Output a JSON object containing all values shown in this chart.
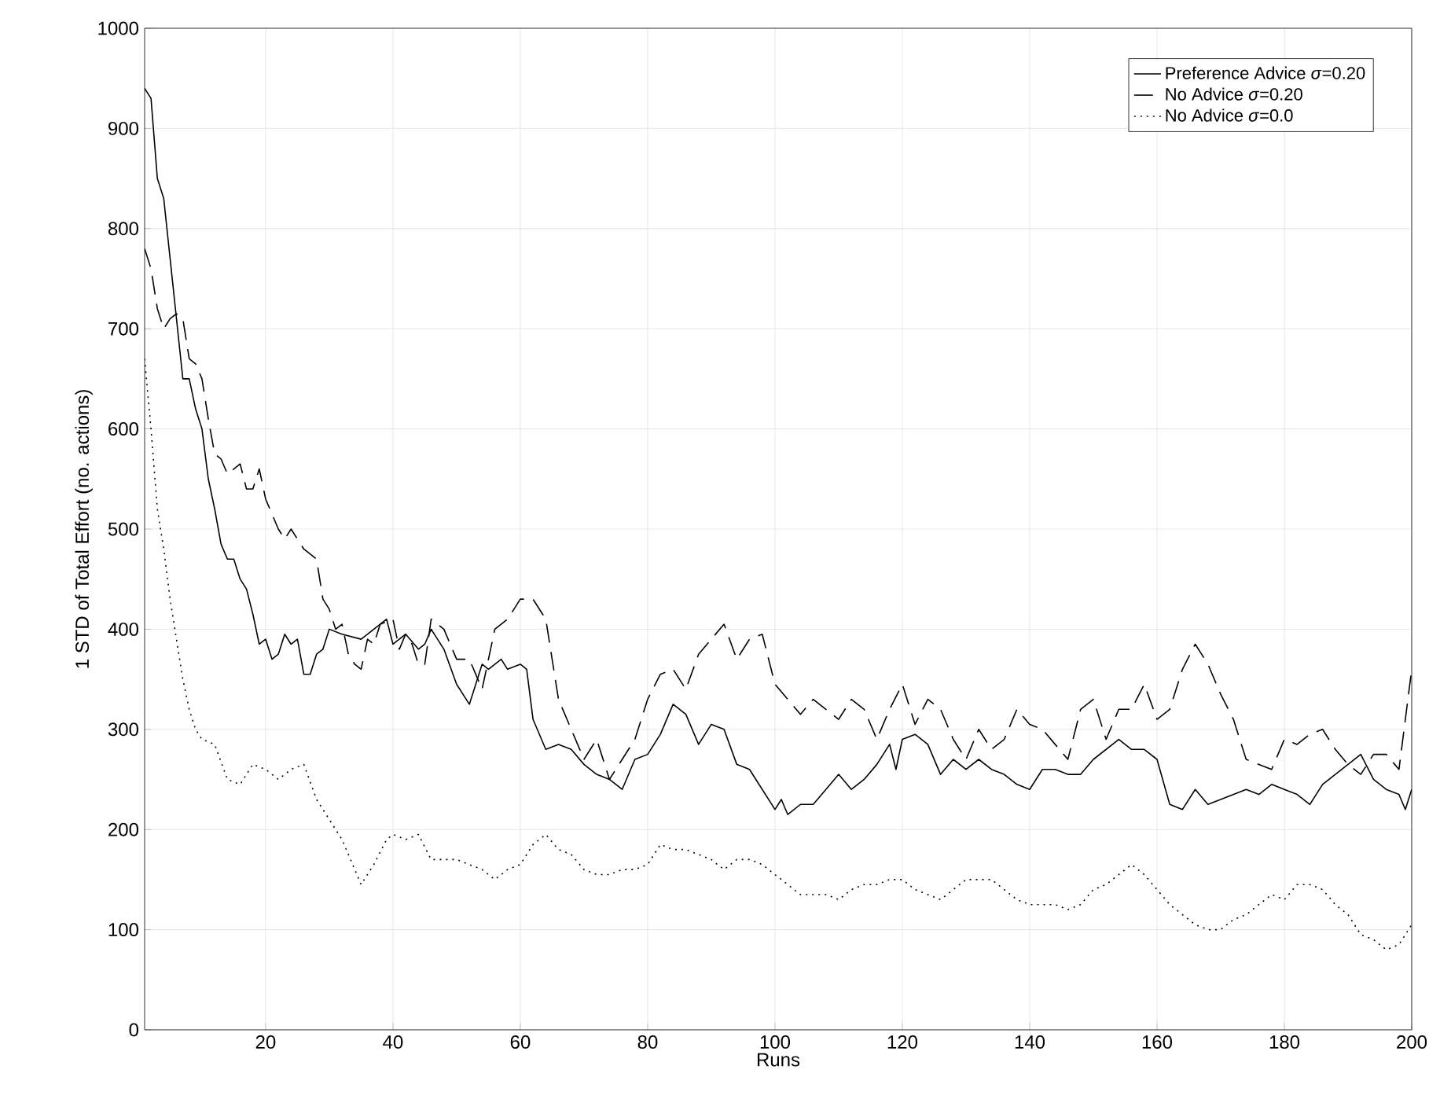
{
  "chart_data": {
    "type": "line",
    "xlabel": "Runs",
    "ylabel": "1 STD of Total Effort (no. actions)",
    "xlim": [
      1,
      200
    ],
    "ylim": [
      0,
      1000
    ],
    "xticks": [
      20,
      40,
      60,
      80,
      100,
      120,
      140,
      160,
      180,
      200
    ],
    "yticks": [
      0,
      100,
      200,
      300,
      400,
      500,
      600,
      700,
      800,
      900,
      1000
    ],
    "grid": true,
    "legend": "top right",
    "marker": "none",
    "series": [
      {
        "name": "Preference Advice *σ*=0.20",
        "color": "#000000",
        "line_style": "solid",
        "x": [
          1,
          2,
          3,
          4,
          5,
          6,
          7,
          8,
          9,
          10,
          11,
          12,
          13,
          14,
          15,
          16,
          17,
          18,
          19,
          20,
          21,
          22,
          23,
          24,
          25,
          26,
          27,
          28,
          29,
          30,
          32,
          35,
          37,
          39,
          40,
          42,
          44,
          45,
          46,
          47,
          48,
          50,
          52,
          54,
          55,
          57,
          58,
          60,
          61,
          62,
          64,
          66,
          68,
          70,
          72,
          74,
          76,
          78,
          80,
          82,
          84,
          86,
          88,
          90,
          92,
          94,
          96,
          98,
          100,
          101,
          102,
          104,
          106,
          108,
          110,
          112,
          114,
          116,
          118,
          119,
          120,
          122,
          124,
          126,
          128,
          130,
          132,
          134,
          136,
          138,
          140,
          142,
          144,
          146,
          148,
          150,
          152,
          154,
          156,
          158,
          160,
          162,
          164,
          166,
          168,
          170,
          172,
          174,
          176,
          178,
          180,
          182,
          184,
          186,
          188,
          190,
          192,
          194,
          196,
          198,
          199,
          200
        ],
        "values": [
          940,
          930,
          850,
          830,
          770,
          710,
          650,
          650,
          620,
          600,
          550,
          520,
          485,
          470,
          470,
          450,
          440,
          415,
          385,
          390,
          370,
          375,
          395,
          385,
          390,
          355,
          355,
          375,
          380,
          400,
          395,
          390,
          400,
          410,
          385,
          395,
          380,
          385,
          400,
          390,
          380,
          345,
          325,
          365,
          360,
          370,
          360,
          365,
          360,
          310,
          280,
          285,
          280,
          265,
          255,
          250,
          240,
          270,
          275,
          295,
          325,
          315,
          285,
          305,
          300,
          265,
          260,
          240,
          220,
          230,
          215,
          225,
          225,
          240,
          255,
          240,
          250,
          265,
          285,
          260,
          290,
          295,
          285,
          255,
          270,
          260,
          270,
          260,
          255,
          245,
          240,
          260,
          260,
          255,
          255,
          270,
          280,
          290,
          280,
          280,
          270,
          225,
          220,
          240,
          225,
          230,
          235,
          240,
          235,
          245,
          240,
          235,
          225,
          245,
          255,
          265,
          275,
          250,
          240,
          235,
          220,
          240
        ]
      },
      {
        "name": "No Advice *σ*=0.20",
        "color": "#000000",
        "line_style": "dashed",
        "x": [
          1,
          2,
          3,
          4,
          5,
          6,
          7,
          8,
          9,
          10,
          11,
          12,
          13,
          14,
          15,
          16,
          17,
          18,
          19,
          20,
          22,
          23,
          24,
          26,
          28,
          29,
          30,
          31,
          32,
          33,
          34,
          35,
          36,
          37,
          38,
          40,
          41,
          42,
          43,
          44,
          45,
          46,
          48,
          50,
          52,
          54,
          56,
          58,
          60,
          62,
          63,
          64,
          66,
          68,
          70,
          72,
          74,
          76,
          78,
          80,
          82,
          84,
          86,
          88,
          90,
          92,
          94,
          96,
          98,
          100,
          102,
          104,
          106,
          108,
          110,
          112,
          114,
          116,
          118,
          120,
          122,
          124,
          126,
          128,
          130,
          132,
          134,
          136,
          138,
          140,
          142,
          144,
          146,
          148,
          150,
          152,
          154,
          156,
          158,
          160,
          162,
          164,
          166,
          168,
          170,
          172,
          174,
          176,
          178,
          180,
          182,
          184,
          186,
          188,
          190,
          192,
          194,
          196,
          198,
          200
        ],
        "values": [
          780,
          760,
          720,
          700,
          710,
          715,
          710,
          670,
          665,
          650,
          610,
          575,
          570,
          555,
          560,
          565,
          540,
          540,
          560,
          530,
          500,
          490,
          500,
          480,
          470,
          430,
          420,
          400,
          405,
          375,
          365,
          360,
          390,
          385,
          405,
          410,
          380,
          395,
          385,
          365,
          365,
          410,
          400,
          370,
          370,
          340,
          400,
          410,
          430,
          430,
          420,
          410,
          330,
          300,
          270,
          290,
          250,
          270,
          290,
          330,
          355,
          360,
          340,
          375,
          390,
          405,
          370,
          390,
          395,
          345,
          330,
          315,
          330,
          320,
          310,
          330,
          320,
          290,
          320,
          345,
          305,
          330,
          320,
          290,
          270,
          300,
          280,
          290,
          320,
          305,
          300,
          285,
          270,
          320,
          330,
          290,
          320,
          320,
          345,
          310,
          320,
          360,
          385,
          365,
          335,
          310,
          270,
          265,
          260,
          290,
          285,
          295,
          300,
          280,
          265,
          255,
          275,
          275,
          260,
          360
        ]
      },
      {
        "name": "No Advice *σ*=0.0",
        "color": "#000000",
        "line_style": "dotted",
        "x": [
          1,
          2,
          3,
          4,
          5,
          6,
          7,
          8,
          9,
          10,
          12,
          14,
          16,
          18,
          20,
          22,
          24,
          26,
          28,
          30,
          32,
          34,
          35,
          37,
          39,
          40,
          42,
          44,
          46,
          48,
          50,
          52,
          54,
          56,
          58,
          60,
          62,
          64,
          66,
          68,
          70,
          72,
          74,
          76,
          78,
          80,
          82,
          84,
          86,
          88,
          90,
          92,
          94,
          96,
          98,
          100,
          102,
          104,
          106,
          108,
          110,
          112,
          114,
          116,
          118,
          120,
          122,
          124,
          126,
          128,
          130,
          132,
          134,
          136,
          138,
          140,
          142,
          144,
          146,
          148,
          150,
          152,
          154,
          156,
          158,
          160,
          162,
          164,
          166,
          168,
          170,
          172,
          174,
          176,
          178,
          180,
          182,
          184,
          186,
          188,
          190,
          192,
          194,
          196,
          198,
          200
        ],
        "values": [
          670,
          600,
          520,
          480,
          430,
          390,
          350,
          320,
          300,
          290,
          285,
          250,
          245,
          265,
          260,
          250,
          260,
          265,
          230,
          210,
          190,
          160,
          145,
          165,
          190,
          195,
          190,
          195,
          170,
          170,
          170,
          165,
          160,
          150,
          160,
          165,
          185,
          195,
          180,
          175,
          160,
          155,
          155,
          160,
          160,
          165,
          185,
          180,
          180,
          175,
          170,
          160,
          170,
          170,
          165,
          155,
          145,
          135,
          135,
          135,
          130,
          140,
          145,
          145,
          150,
          150,
          140,
          135,
          130,
          140,
          150,
          150,
          150,
          140,
          130,
          125,
          125,
          125,
          120,
          125,
          140,
          145,
          155,
          165,
          155,
          140,
          125,
          115,
          105,
          100,
          100,
          110,
          115,
          125,
          135,
          130,
          145,
          145,
          140,
          125,
          115,
          95,
          90,
          80,
          85,
          105
        ]
      }
    ]
  }
}
